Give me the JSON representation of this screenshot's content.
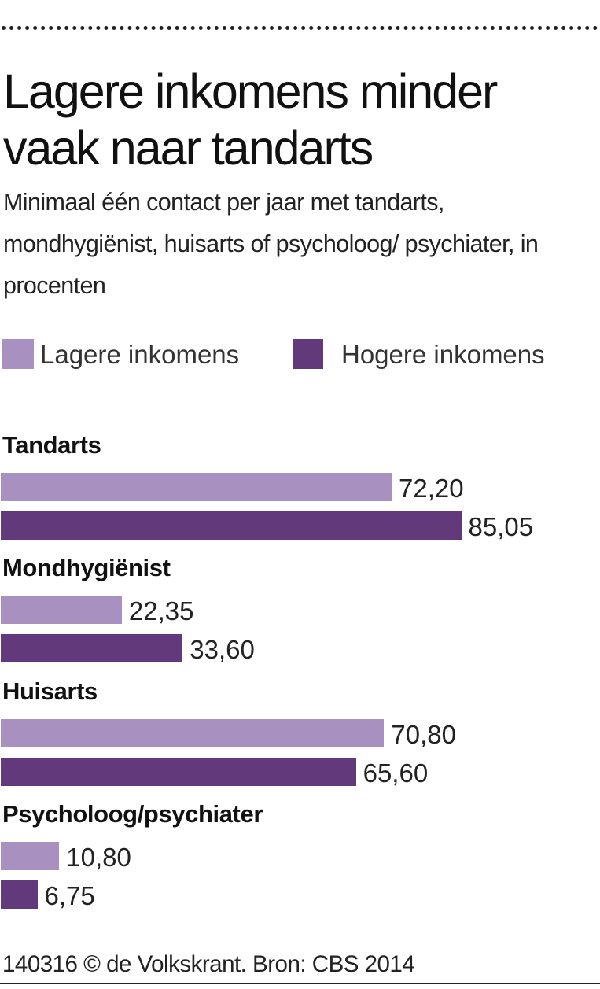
{
  "chart_data": {
    "type": "bar",
    "title": "Lagere inkomens minder vaak naar tandarts",
    "subtitle": "Minimaal één contact per jaar met tandarts, mondhygiënist, huisarts of psycholoog/ psychiater, in procenten",
    "categories": [
      "Tandarts",
      "Mondhygiënist",
      "Huisarts",
      "Psycholoog/psychiater"
    ],
    "series": [
      {
        "name": "Lagere inkomens",
        "color": "#a891c0",
        "values": [
          72.2,
          22.35,
          70.8,
          10.8
        ],
        "labels": [
          "72,20",
          "22,35",
          "70,80",
          "10,80"
        ]
      },
      {
        "name": "Hogere inkomens",
        "color": "#623a7b",
        "values": [
          85.05,
          33.6,
          65.6,
          6.75
        ],
        "labels": [
          "85,05",
          "33,60",
          "65,60",
          "6,75"
        ]
      }
    ],
    "legend_position": "top",
    "grid": false,
    "orientation": "horizontal"
  },
  "footer": "140316 © de Volkskrant. Bron: CBS 2014"
}
